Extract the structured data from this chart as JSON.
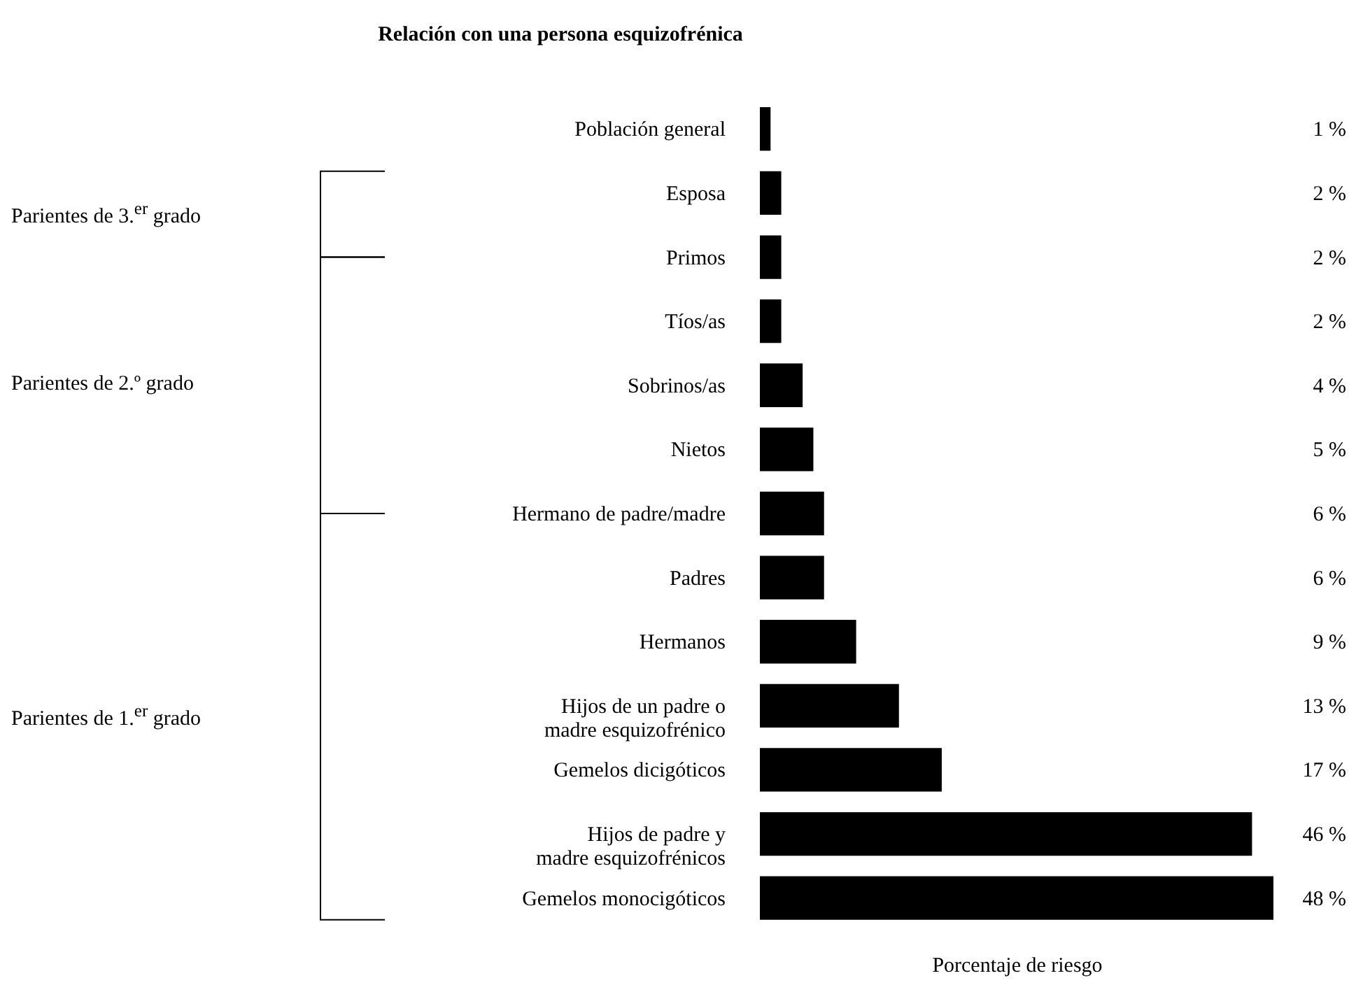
{
  "chart_data": {
    "type": "bar",
    "orientation": "horizontal",
    "title": "Relación con una persona esquizofrénica",
    "xlabel": "Porcentaje de riesgo",
    "categories": [
      "Población general",
      "Esposa",
      "Primos",
      "Tíos/as",
      "Sobrinos/as",
      "Nietos",
      "Hermano de padre/madre",
      "Padres",
      "Hermanos",
      "Hijos de un padre o\nmadre esquizofrénico",
      "Gemelos dicigóticos",
      "Hijos de padre y\nmadre esquizofrénicos",
      "Gemelos monocigóticos"
    ],
    "values": [
      1,
      2,
      2,
      2,
      4,
      5,
      6,
      6,
      9,
      13,
      17,
      46,
      48
    ],
    "value_labels": [
      "1 %",
      "2 %",
      "2 %",
      "2 %",
      "4 %",
      "5 %",
      "6 %",
      "6 %",
      "9 %",
      "13 %",
      "17 %",
      "46 %",
      "48 %"
    ],
    "color": "#000000",
    "annotations": [
      "Parientes de 3.$^{er}$ grado",
      "Parientes de 2.º grado",
      "Parientes de 1.$^{er}$ grado"
    ]
  }
}
